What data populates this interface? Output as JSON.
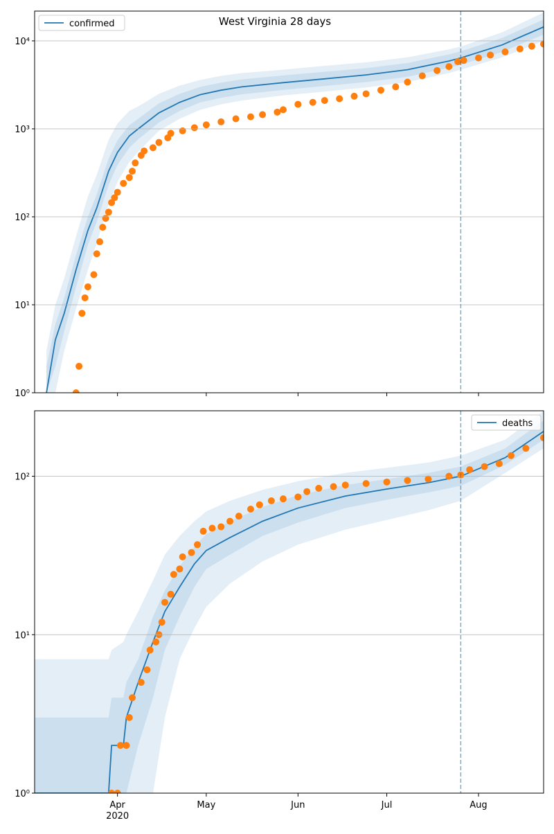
{
  "chart_data": [
    {
      "type": "line",
      "title": "West Virginia 28 days",
      "yscale": "log",
      "ylim": [
        1,
        21800
      ],
      "yticks": [
        {
          "value": 1,
          "label": "10⁰"
        },
        {
          "value": 10,
          "label": "10¹"
        },
        {
          "value": 100,
          "label": "10²"
        },
        {
          "value": 1000,
          "label": "10³"
        },
        {
          "value": 10000,
          "label": "10⁴"
        }
      ],
      "xlim": [
        0,
        172
      ],
      "xticks": [
        28,
        58,
        89,
        119,
        150
      ],
      "xtick_labels": false,
      "grid": true,
      "legend": "upper left",
      "vline": 144,
      "vline_color": "#1f77b4",
      "series": [
        {
          "name": "confirmed",
          "color": "#1f77b4",
          "x": [
            4,
            7,
            10,
            14,
            18,
            21,
            25,
            28,
            32,
            35,
            42,
            49,
            56,
            63,
            70,
            84,
            98,
            112,
            126,
            140,
            144,
            158,
            172
          ],
          "values": [
            1,
            4,
            8,
            25,
            70,
            126,
            330,
            540,
            830,
            1000,
            1520,
            2000,
            2450,
            2750,
            3000,
            3350,
            3700,
            4100,
            4700,
            5900,
            6400,
            9000,
            14400
          ]
        }
      ],
      "bands": [
        {
          "color": "#1f77b4",
          "x": [
            4,
            7,
            10,
            14,
            18,
            21,
            25,
            28,
            32,
            35,
            42,
            49,
            56,
            63,
            70,
            84,
            98,
            112,
            126,
            140,
            144,
            158,
            172
          ],
          "upper": [
            3,
            10,
            20,
            60,
            170,
            300,
            750,
            1150,
            1600,
            1800,
            2500,
            3100,
            3600,
            4000,
            4300,
            4700,
            5200,
            5700,
            6500,
            8000,
            8600,
            12500,
            21000
          ],
          "lower": [
            1,
            1,
            3,
            9,
            25,
            50,
            140,
            250,
            420,
            550,
            950,
            1300,
            1650,
            1900,
            2100,
            2400,
            2650,
            2950,
            3400,
            4300,
            4700,
            6500,
            10000
          ]
        },
        {
          "color": "#1f77b4",
          "x": [
            4,
            7,
            10,
            14,
            18,
            21,
            25,
            28,
            32,
            35,
            42,
            49,
            56,
            63,
            70,
            84,
            98,
            112,
            126,
            140,
            144,
            158,
            172
          ],
          "upper": [
            2,
            6,
            12,
            37,
            100,
            180,
            460,
            740,
            1100,
            1300,
            1950,
            2500,
            3000,
            3350,
            3650,
            4050,
            4450,
            4900,
            5600,
            7000,
            7600,
            10800,
            17500
          ],
          "lower": [
            1,
            2,
            5,
            16,
            48,
            88,
            230,
            390,
            610,
            760,
            1180,
            1600,
            2000,
            2250,
            2470,
            2770,
            3070,
            3400,
            3900,
            4950,
            5350,
            7500,
            11800
          ]
        }
      ],
      "observed": {
        "color": "#ff7f0e",
        "x": [
          14,
          15,
          16,
          17,
          18,
          20,
          21,
          22,
          23,
          24,
          25,
          26,
          27,
          28,
          30,
          32,
          33,
          34,
          36,
          37,
          40,
          42,
          45,
          46,
          50,
          54,
          58,
          63,
          68,
          73,
          77,
          82,
          84,
          89,
          94,
          98,
          103,
          108,
          112,
          117,
          122,
          126,
          131,
          136,
          140,
          143,
          145,
          150,
          154,
          159,
          164,
          168,
          172
        ],
        "values": [
          1,
          2,
          8,
          12,
          16,
          22,
          38,
          52,
          76,
          96,
          113,
          145,
          165,
          190,
          240,
          280,
          330,
          410,
          500,
          560,
          610,
          700,
          790,
          890,
          950,
          1030,
          1110,
          1200,
          1300,
          1370,
          1450,
          1550,
          1650,
          1900,
          2000,
          2100,
          2200,
          2350,
          2500,
          2750,
          3000,
          3400,
          4000,
          4600,
          5100,
          5800,
          6000,
          6400,
          6900,
          7500,
          8100,
          8700,
          9200
        ]
      }
    },
    {
      "type": "line",
      "yscale": "log",
      "ylim": [
        1,
        259
      ],
      "yticks": [
        {
          "value": 1,
          "label": "10⁰"
        },
        {
          "value": 10,
          "label": "10¹"
        },
        {
          "value": 100,
          "label": "10²"
        }
      ],
      "xlim": [
        0,
        172
      ],
      "xticks": [
        {
          "value": 28,
          "label": "Apr"
        },
        {
          "value": 58,
          "label": "May"
        },
        {
          "value": 89,
          "label": "Jun"
        },
        {
          "value": 119,
          "label": "Jul"
        },
        {
          "value": 150,
          "label": "Aug"
        }
      ],
      "year_label": "2020",
      "grid": true,
      "legend": "upper right",
      "vline": 144,
      "vline_color": "#1f77b4",
      "series": [
        {
          "name": "deaths",
          "color": "#1f77b4",
          "x": [
            0,
            25,
            26,
            30,
            31,
            35,
            40,
            44,
            49,
            54,
            58,
            66,
            77,
            89,
            105,
            119,
            133,
            144,
            159,
            172
          ],
          "values": [
            1,
            1,
            2,
            2,
            3,
            5,
            9,
            14,
            20,
            28,
            34,
            41,
            52,
            63,
            75,
            83,
            91,
            100,
            131,
            192
          ]
        }
      ],
      "bands": [
        {
          "color": "#1f77b4",
          "x": [
            0,
            25,
            26,
            30,
            31,
            35,
            40,
            44,
            49,
            54,
            58,
            66,
            77,
            89,
            105,
            119,
            133,
            144,
            159,
            172
          ],
          "upper": [
            7,
            7,
            8,
            9,
            10,
            14,
            22,
            32,
            42,
            52,
            60,
            70,
            82,
            93,
            105,
            113,
            122,
            135,
            170,
            259
          ],
          "lower": [
            1,
            1,
            1,
            1,
            1,
            1,
            1,
            3,
            7,
            11,
            15,
            21,
            29,
            37,
            46,
            53,
            61,
            70,
            105,
            150
          ]
        },
        {
          "color": "#1f77b4",
          "x": [
            0,
            25,
            26,
            30,
            31,
            35,
            40,
            44,
            49,
            54,
            58,
            66,
            77,
            89,
            105,
            119,
            133,
            144,
            159,
            172
          ],
          "upper": [
            3,
            3,
            4,
            4,
            5,
            7,
            13,
            19,
            27,
            36,
            43,
            52,
            64,
            76,
            88,
            96,
            105,
            115,
            150,
            225
          ],
          "lower": [
            1,
            1,
            1,
            1,
            1,
            2,
            4,
            8,
            13,
            20,
            26,
            32,
            42,
            51,
            63,
            71,
            79,
            87,
            118,
            170
          ]
        }
      ],
      "observed": {
        "color": "#ff7f0e",
        "x": [
          26,
          28,
          29,
          31,
          32,
          33,
          36,
          38,
          39,
          41,
          42,
          43,
          44,
          46,
          47,
          49,
          50,
          53,
          55,
          57,
          60,
          63,
          66,
          69,
          73,
          76,
          80,
          84,
          89,
          92,
          96,
          101,
          105,
          112,
          119,
          126,
          133,
          140,
          144,
          147,
          152,
          157,
          161,
          166,
          172
        ],
        "values": [
          1,
          1,
          2,
          2,
          3,
          4,
          5,
          6,
          8,
          9,
          10,
          12,
          16,
          18,
          24,
          26,
          31,
          33,
          37,
          45,
          47,
          48,
          52,
          56,
          62,
          66,
          70,
          72,
          74,
          80,
          84,
          86,
          88,
          90,
          92,
          94,
          96,
          100,
          102,
          110,
          115,
          120,
          135,
          150,
          175
        ]
      }
    }
  ]
}
